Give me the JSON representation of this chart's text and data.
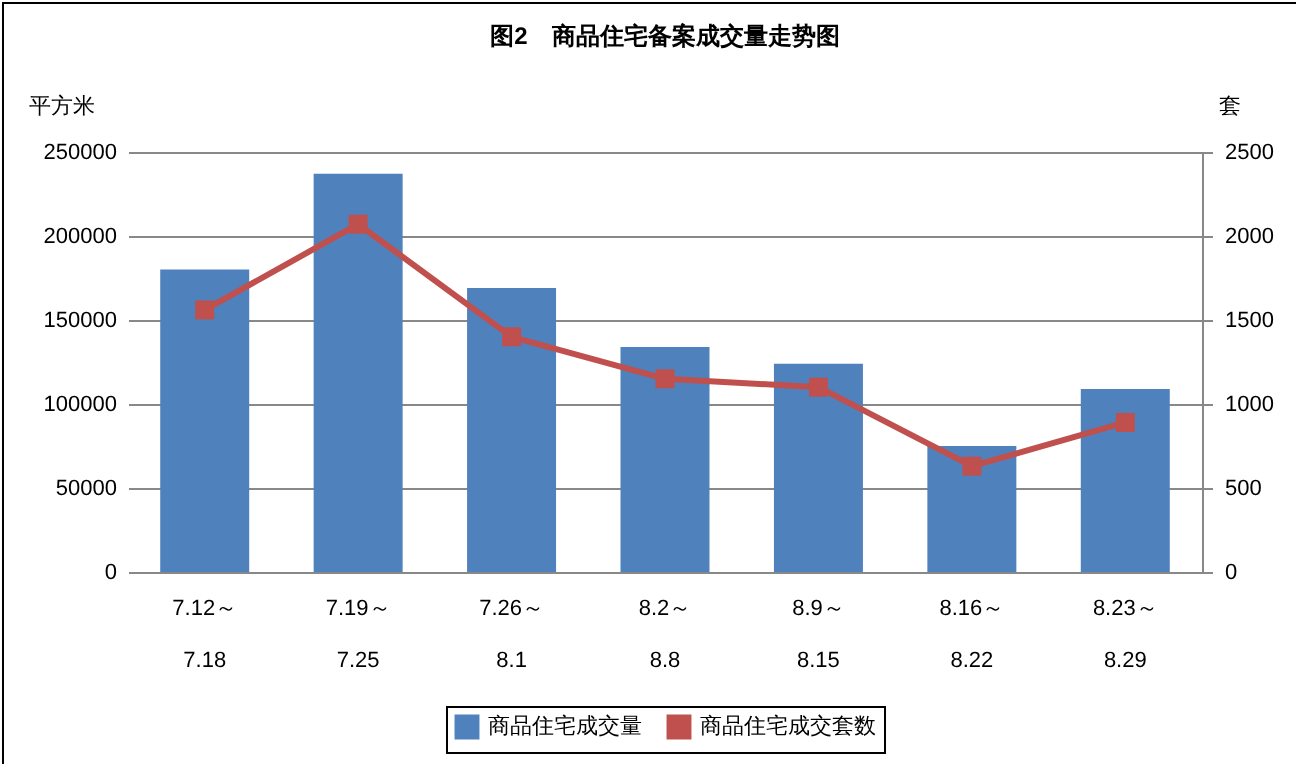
{
  "chart_data": {
    "type": "bar",
    "title": "图2　商品住宅备案成交量走势图",
    "ylabel": "平方米",
    "y2label": "套",
    "categories": [
      "7.12～\n7.18",
      "7.19～\n7.25",
      "7.26～\n8.1",
      "8.2～\n8.8",
      "8.9～\n8.15",
      "8.16～\n8.22",
      "8.23～\n8.29"
    ],
    "series": [
      {
        "name": "商品住宅成交量",
        "color": "#4f81bd",
        "values": [
          180000,
          237000,
          169000,
          134000,
          124000,
          75000,
          109000
        ]
      },
      {
        "name": "商品住宅成交套数",
        "type": "line",
        "axis": "y2",
        "color": "#c0504d",
        "marker": "square",
        "values": [
          1560,
          2070,
          1400,
          1150,
          1100,
          630,
          890
        ]
      }
    ],
    "ylim": [
      0,
      250000
    ],
    "yticks": [
      0,
      50000,
      100000,
      150000,
      200000,
      250000
    ],
    "y2lim": [
      0,
      2500
    ],
    "y2ticks": [
      0,
      500,
      1000,
      1500,
      2000,
      2500
    ],
    "grid": "y",
    "legend": "bottom"
  }
}
